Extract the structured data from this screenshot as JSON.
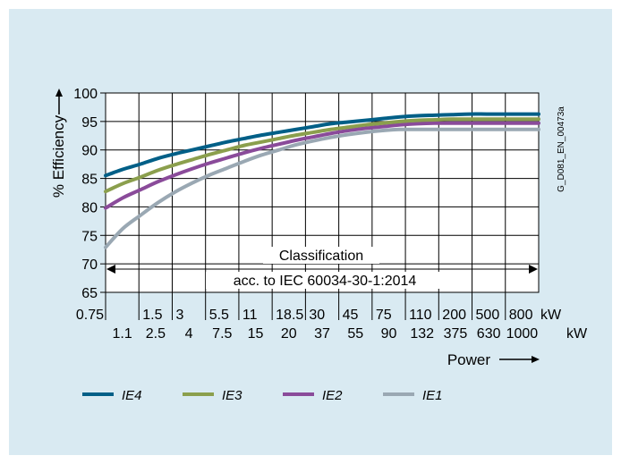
{
  "chart_data": {
    "type": "line",
    "title": "",
    "ylabel": "% Efficiency",
    "xlabel": "Power",
    "ylim": [
      65,
      100
    ],
    "yticks": [
      65,
      70,
      75,
      80,
      85,
      90,
      95,
      100
    ],
    "x_tick_labels_top": [
      "0.75",
      "1.5",
      "3",
      "5.5",
      "11",
      "18.5",
      "30",
      "45",
      "75",
      "110",
      "200",
      "500",
      "800"
    ],
    "x_tick_labels_bottom": [
      "1.1",
      "2.5",
      "4",
      "7.5",
      "15",
      "20",
      "37",
      "55",
      "90",
      "132",
      "375",
      "630",
      "1000"
    ],
    "x_unit_top": "kW",
    "x_unit_bottom": "kW",
    "x_power_kw": [
      0.75,
      1.1,
      1.5,
      2.5,
      3,
      4,
      5.5,
      7.5,
      11,
      15,
      18.5,
      20,
      30,
      37,
      45,
      55,
      75,
      90,
      110,
      132,
      200,
      375,
      500,
      630,
      800,
      1000
    ],
    "series": [
      {
        "name": "IE4",
        "color": "#005f87",
        "values": [
          85.5,
          86.6,
          87.5,
          88.5,
          89.3,
          90.0,
          90.7,
          91.4,
          92.0,
          92.6,
          93.1,
          93.6,
          94.1,
          94.6,
          94.9,
          95.2,
          95.5,
          95.8,
          96.0,
          96.1,
          96.2,
          96.3,
          96.3,
          96.3,
          96.3,
          96.3
        ]
      },
      {
        "name": "IE3",
        "color": "#8b9f4d",
        "values": [
          82.7,
          84.1,
          85.2,
          86.4,
          87.4,
          88.3,
          89.2,
          90.0,
          90.8,
          91.4,
          92.0,
          92.6,
          93.1,
          93.6,
          94.0,
          94.4,
          94.7,
          95.0,
          95.2,
          95.3,
          95.4,
          95.4,
          95.4,
          95.4,
          95.4,
          95.4
        ]
      },
      {
        "name": "IE2",
        "color": "#8a4b9a",
        "values": [
          79.8,
          81.6,
          83.0,
          84.4,
          85.6,
          86.7,
          87.7,
          88.6,
          89.5,
          90.3,
          91.0,
          91.7,
          92.3,
          92.9,
          93.4,
          93.8,
          94.1,
          94.4,
          94.6,
          94.7,
          94.7,
          94.7,
          94.7,
          94.7,
          94.7,
          94.7
        ]
      },
      {
        "name": "IE1",
        "color": "#9aa8b3",
        "values": [
          72.9,
          76.2,
          78.5,
          80.7,
          82.6,
          84.2,
          85.6,
          86.8,
          88.0,
          89.1,
          90.0,
          90.9,
          91.6,
          92.2,
          92.7,
          93.1,
          93.4,
          93.6,
          93.6,
          93.6,
          93.6,
          93.6,
          93.6,
          93.6,
          93.6,
          93.6
        ]
      }
    ],
    "annotations": {
      "classification": "Classification",
      "standard": "acc. to IEC 60034-30-1:2014",
      "doc_code": "G_D081_EN_00473a"
    },
    "grid": true,
    "legend": "bottom"
  }
}
